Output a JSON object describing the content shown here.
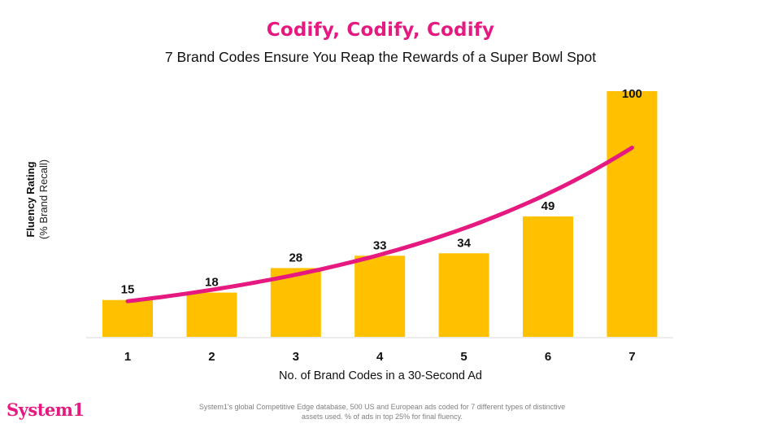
{
  "header": {
    "title": "Codify, Codify, Codify",
    "subtitle": "7 Brand Codes Ensure You Reap the Rewards of a Super Bowl Spot"
  },
  "footer": {
    "brand": "System1",
    "footnote_line1": "System1's global Competitive Edge database, 500 US and European ads coded for 7 different types of distinctive",
    "footnote_line2": "assets used. % of ads in top 25% for final fluency."
  },
  "colors": {
    "title": "#E5197F",
    "bar": "#FFC000",
    "trendline": "#E5197F",
    "text": "#111111",
    "baseline": "#E6E6E6"
  },
  "chart_data": {
    "type": "bar",
    "title": "Codify, Codify, Codify",
    "subtitle": "7 Brand Codes Ensure You Reap the Rewards of a Super Bowl Spot",
    "xlabel": "No. of Brand Codes in a 30-Second Ad",
    "ylabel": "Fluency Rating",
    "ylabel_sub": "(% Brand Recall)",
    "categories": [
      "1",
      "2",
      "3",
      "4",
      "5",
      "6",
      "7"
    ],
    "values": [
      15,
      18,
      28,
      33,
      34,
      49,
      100
    ],
    "data_labels": [
      "15",
      "18",
      "28",
      "33",
      "34",
      "49",
      "100"
    ],
    "ylim": [
      0,
      100
    ],
    "grid": false,
    "legend": "none",
    "trendline": {
      "type": "exponential",
      "x_range": [
        1,
        7
      ],
      "start_value": 14.5,
      "end_value": 77
    }
  }
}
